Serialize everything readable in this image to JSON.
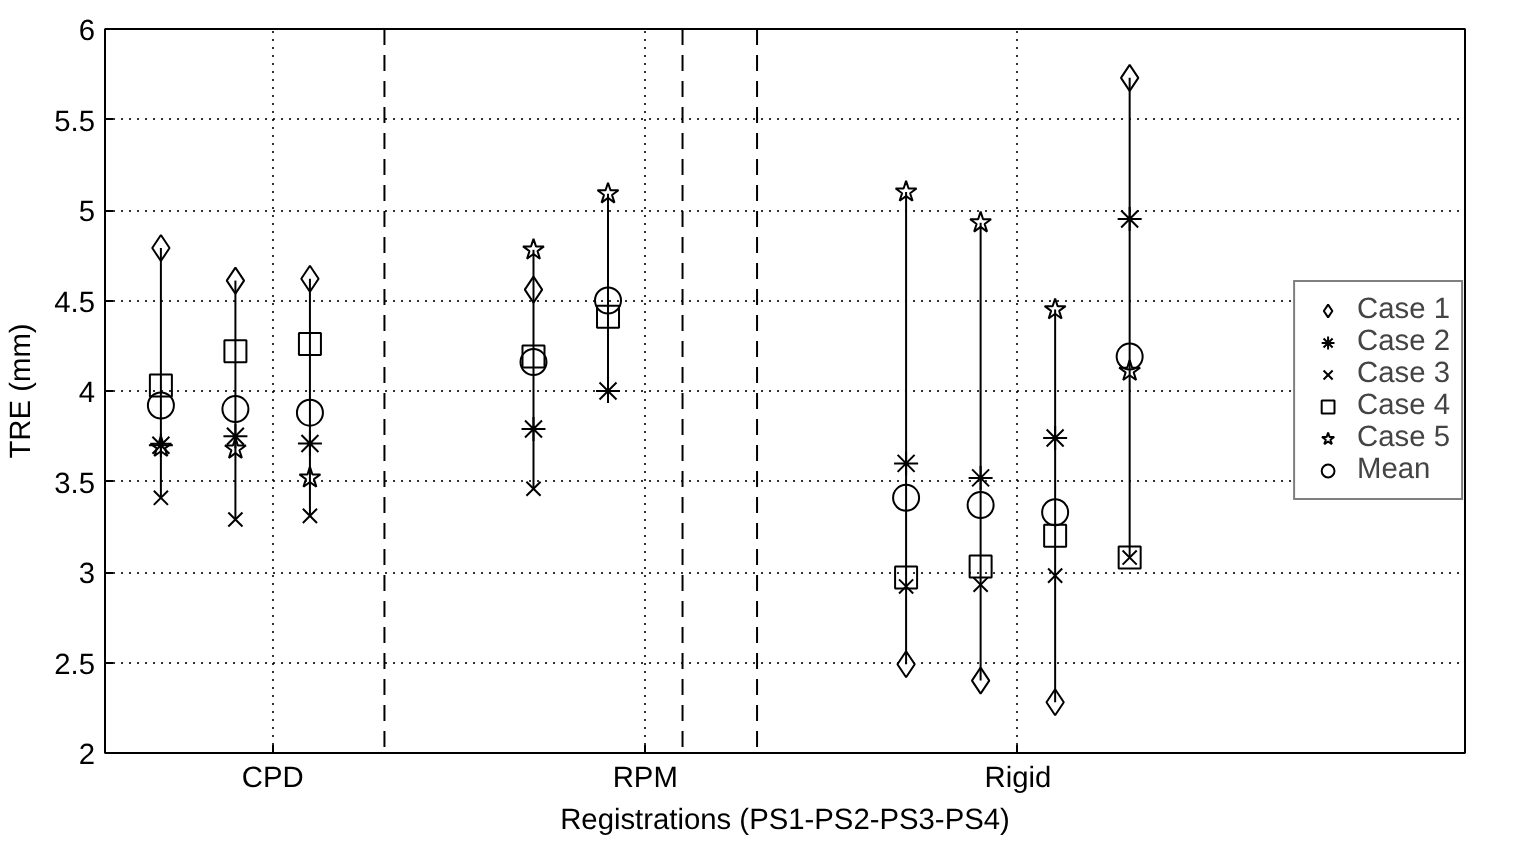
{
  "chart_data": {
    "type": "scatter",
    "xlabel": "Registrations (PS1-PS2-PS3-PS4)",
    "ylabel": "TRE (mm)",
    "categories": [
      null,
      null,
      null,
      null,
      "CPD",
      null,
      null,
      null,
      null,
      null,
      null,
      null,
      null,
      null,
      "RPM",
      null,
      null,
      null,
      null,
      null,
      null,
      null,
      null,
      null,
      "Rigid",
      null,
      null,
      null,
      null
    ],
    "ylim": [
      2,
      6
    ],
    "yticks": [
      2,
      2.5,
      3,
      3.5,
      4,
      4.5,
      5,
      5.5,
      6
    ],
    "grid": true,
    "legend": "right",
    "series": [
      {
        "name": "Case 1",
        "color": "#000000",
        "marker": "diamond",
        "values": [
          null,
          4.79,
          null,
          4.61,
          null,
          4.62,
          null,
          null,
          null,
          null,
          null,
          4.56,
          null,
          null,
          null,
          null,
          null,
          null,
          null,
          null,
          null,
          2.49,
          null,
          2.4,
          null,
          2.28,
          null,
          5.73,
          null
        ]
      },
      {
        "name": "Case 2",
        "color": "#000000",
        "values": [
          null,
          3.7,
          null,
          3.75,
          null,
          3.71,
          null,
          null,
          null,
          null,
          null,
          3.79,
          null,
          4.0,
          null,
          null,
          null,
          null,
          null,
          null,
          null,
          3.6,
          null,
          3.52,
          null,
          3.74,
          null,
          4.95,
          null
        ]
      },
      {
        "name": "Case 3",
        "color": "#000000",
        "marker": "cross",
        "values": [
          null,
          3.41,
          null,
          3.29,
          null,
          3.31,
          null,
          null,
          null,
          null,
          null,
          3.46,
          null,
          null,
          null,
          null,
          null,
          null,
          null,
          null,
          null,
          2.92,
          null,
          2.93,
          null,
          2.98,
          null,
          3.08,
          null
        ]
      },
      {
        "name": "Case 4",
        "color": "#000000",
        "marker": "square",
        "values": [
          null,
          4.03,
          null,
          4.22,
          null,
          4.26,
          null,
          null,
          null,
          null,
          null,
          4.19,
          null,
          4.41,
          null,
          null,
          null,
          null,
          null,
          null,
          null,
          2.97,
          null,
          3.03,
          null,
          3.2,
          null,
          3.08,
          null
        ]
      },
      {
        "name": "Case 5",
        "color": "#000000",
        "marker": "star",
        "values": [
          null,
          3.69,
          null,
          3.68,
          null,
          3.52,
          null,
          null,
          null,
          null,
          null,
          4.78,
          null,
          5.09,
          null,
          null,
          null,
          null,
          null,
          null,
          null,
          5.1,
          null,
          4.93,
          null,
          4.45,
          null,
          4.11,
          null
        ]
      },
      {
        "name": "Mean",
        "color": "#000000",
        "marker": "circle",
        "values": [
          null,
          3.92,
          null,
          3.9,
          null,
          3.88,
          null,
          null,
          null,
          null,
          null,
          4.16,
          null,
          4.5,
          null,
          null,
          null,
          null,
          null,
          null,
          null,
          3.41,
          null,
          3.37,
          null,
          3.33,
          null,
          4.19,
          null
        ]
      }
    ]
  }
}
